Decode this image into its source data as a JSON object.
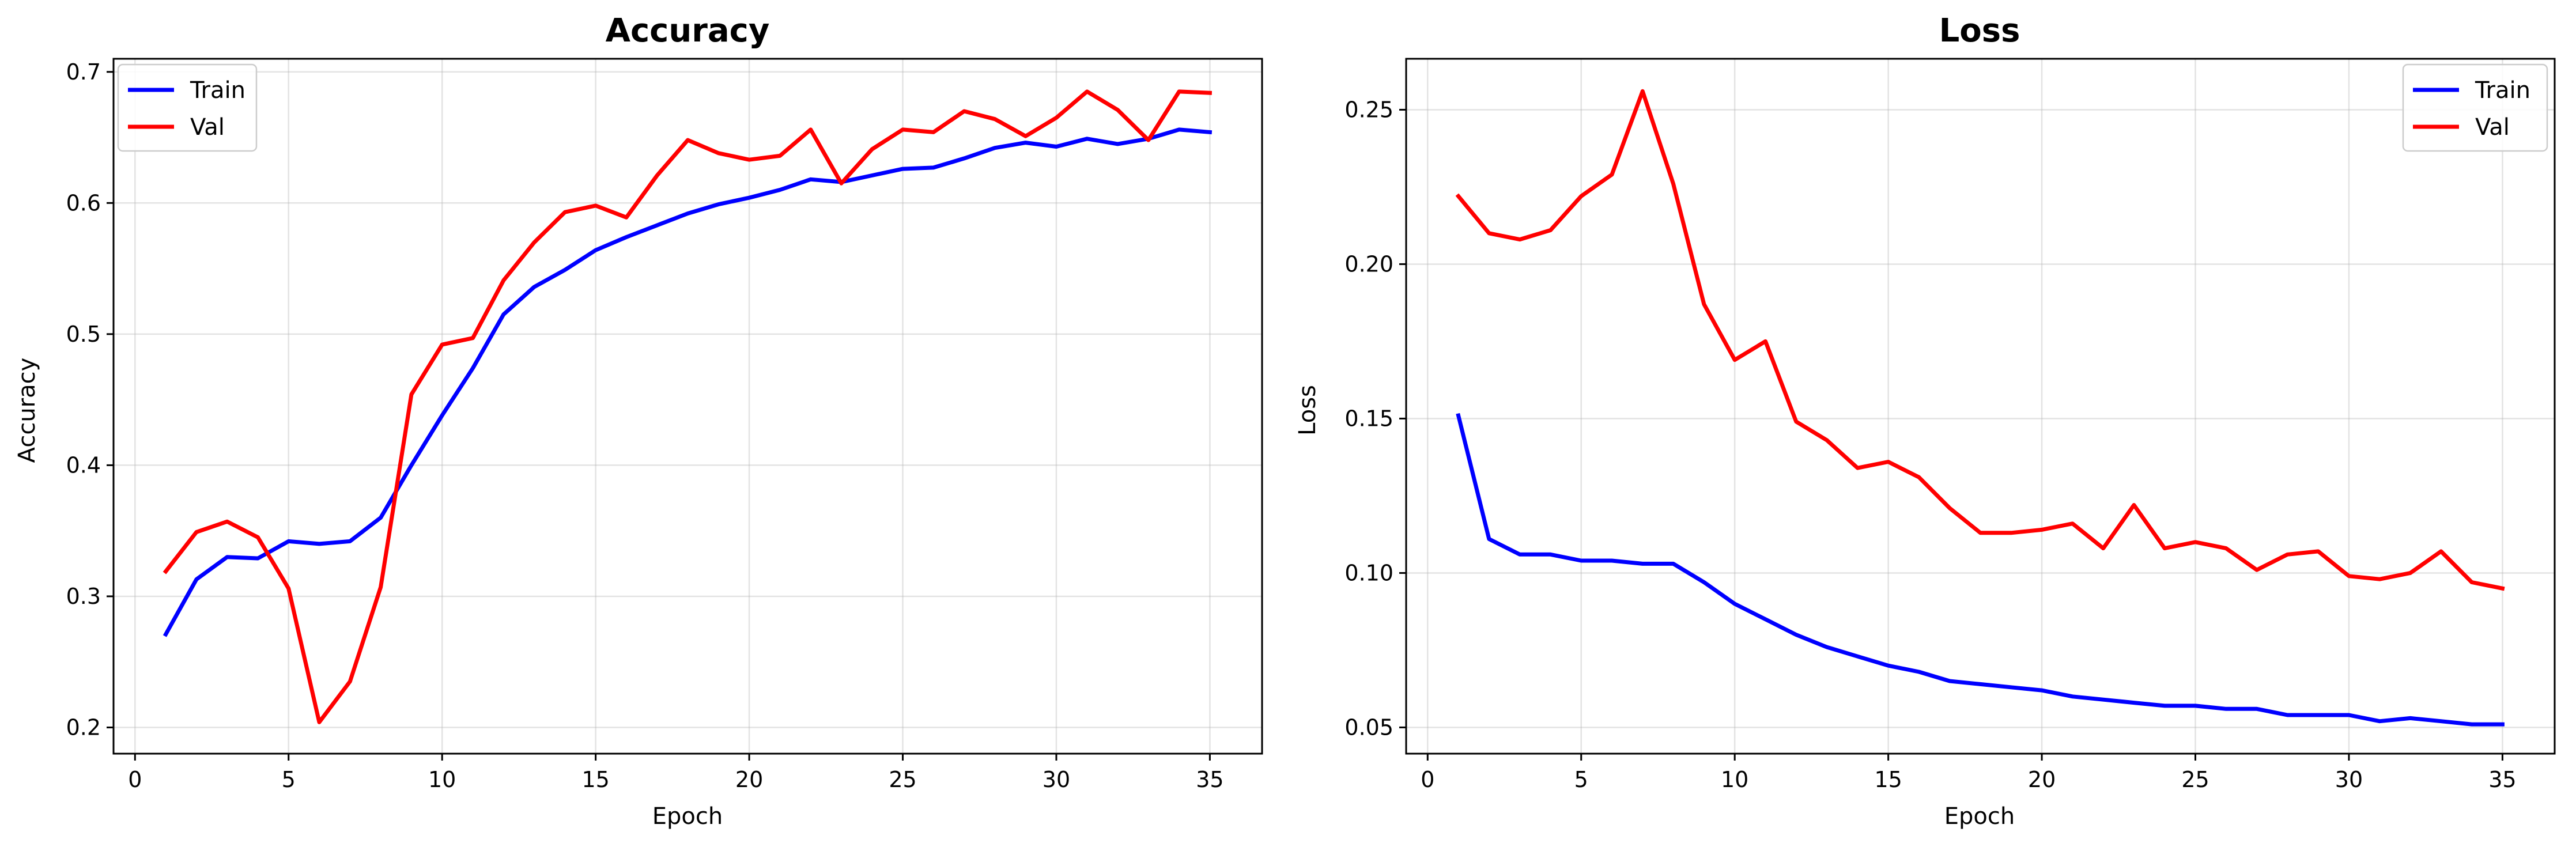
{
  "chart_data": [
    {
      "type": "line",
      "title": "Accuracy",
      "xlabel": "Epoch",
      "ylabel": "Accuracy",
      "xlim": [
        -0.7,
        36.7
      ],
      "ylim": [
        0.18,
        0.71
      ],
      "xticks": [
        0,
        5,
        10,
        15,
        20,
        25,
        30,
        35
      ],
      "yticks": [
        0.2,
        0.3,
        0.4,
        0.5,
        0.6,
        0.7
      ],
      "ytick_format": 1,
      "grid": true,
      "legend_position": "upper left",
      "x": [
        1,
        2,
        3,
        4,
        5,
        6,
        7,
        8,
        9,
        10,
        11,
        12,
        13,
        14,
        15,
        16,
        17,
        18,
        19,
        20,
        21,
        22,
        23,
        24,
        25,
        26,
        27,
        28,
        29,
        30,
        31,
        32,
        33,
        34,
        35
      ],
      "series": [
        {
          "name": "Train",
          "color": "#0000ff",
          "values": [
            0.271,
            0.313,
            0.33,
            0.329,
            0.342,
            0.34,
            0.342,
            0.36,
            0.4,
            0.438,
            0.474,
            0.515,
            0.536,
            0.549,
            0.564,
            0.574,
            0.583,
            0.592,
            0.599,
            0.604,
            0.61,
            0.618,
            0.616,
            0.621,
            0.626,
            0.627,
            0.634,
            0.642,
            0.646,
            0.643,
            0.649,
            0.645,
            0.649,
            0.656,
            0.654
          ]
        },
        {
          "name": "Val",
          "color": "#ff0000",
          "values": [
            0.319,
            0.349,
            0.357,
            0.345,
            0.306,
            0.204,
            0.235,
            0.307,
            0.454,
            0.492,
            0.497,
            0.541,
            0.57,
            0.593,
            0.598,
            0.589,
            0.621,
            0.648,
            0.638,
            0.633,
            0.636,
            0.656,
            0.615,
            0.641,
            0.656,
            0.654,
            0.67,
            0.664,
            0.651,
            0.665,
            0.685,
            0.671,
            0.648,
            0.685,
            0.684
          ]
        }
      ]
    },
    {
      "type": "line",
      "title": "Loss",
      "xlabel": "Epoch",
      "ylabel": "Loss",
      "xlim": [
        -0.7,
        36.7
      ],
      "ylim": [
        0.0415,
        0.2665
      ],
      "xticks": [
        0,
        5,
        10,
        15,
        20,
        25,
        30,
        35
      ],
      "yticks": [
        0.05,
        0.1,
        0.15,
        0.2,
        0.25
      ],
      "ytick_format": 2,
      "grid": true,
      "legend_position": "upper right",
      "x": [
        1,
        2,
        3,
        4,
        5,
        6,
        7,
        8,
        9,
        10,
        11,
        12,
        13,
        14,
        15,
        16,
        17,
        18,
        19,
        20,
        21,
        22,
        23,
        24,
        25,
        26,
        27,
        28,
        29,
        30,
        31,
        32,
        33,
        34,
        35
      ],
      "series": [
        {
          "name": "Train",
          "color": "#0000ff",
          "values": [
            0.151,
            0.111,
            0.106,
            0.106,
            0.104,
            0.104,
            0.103,
            0.103,
            0.097,
            0.09,
            0.085,
            0.08,
            0.076,
            0.073,
            0.07,
            0.068,
            0.065,
            0.064,
            0.063,
            0.062,
            0.06,
            0.059,
            0.058,
            0.057,
            0.057,
            0.056,
            0.056,
            0.054,
            0.054,
            0.054,
            0.052,
            0.053,
            0.052,
            0.051,
            0.051
          ]
        },
        {
          "name": "Val",
          "color": "#ff0000",
          "values": [
            0.222,
            0.21,
            0.208,
            0.211,
            0.222,
            0.229,
            0.256,
            0.226,
            0.187,
            0.169,
            0.175,
            0.149,
            0.143,
            0.134,
            0.136,
            0.131,
            0.121,
            0.113,
            0.113,
            0.114,
            0.116,
            0.108,
            0.122,
            0.108,
            0.11,
            0.108,
            0.101,
            0.106,
            0.107,
            0.099,
            0.098,
            0.1,
            0.107,
            0.097,
            0.095
          ]
        }
      ]
    }
  ]
}
